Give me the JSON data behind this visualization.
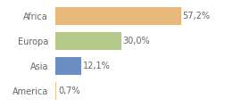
{
  "categories": [
    "America",
    "Asia",
    "Europa",
    "Africa"
  ],
  "values": [
    0.7,
    12.1,
    30.0,
    57.2
  ],
  "bar_colors": [
    "#e8c98a",
    "#6b8fc2",
    "#b5c98a",
    "#e8b87a"
  ],
  "labels": [
    "0,7%",
    "12,1%",
    "30,0%",
    "57,2%"
  ],
  "background_color": "#ffffff",
  "xlim": [
    0,
    75
  ],
  "bar_height": 0.7,
  "label_fontsize": 7,
  "tick_fontsize": 7,
  "figsize": [
    2.8,
    1.2
  ],
  "dpi": 100
}
